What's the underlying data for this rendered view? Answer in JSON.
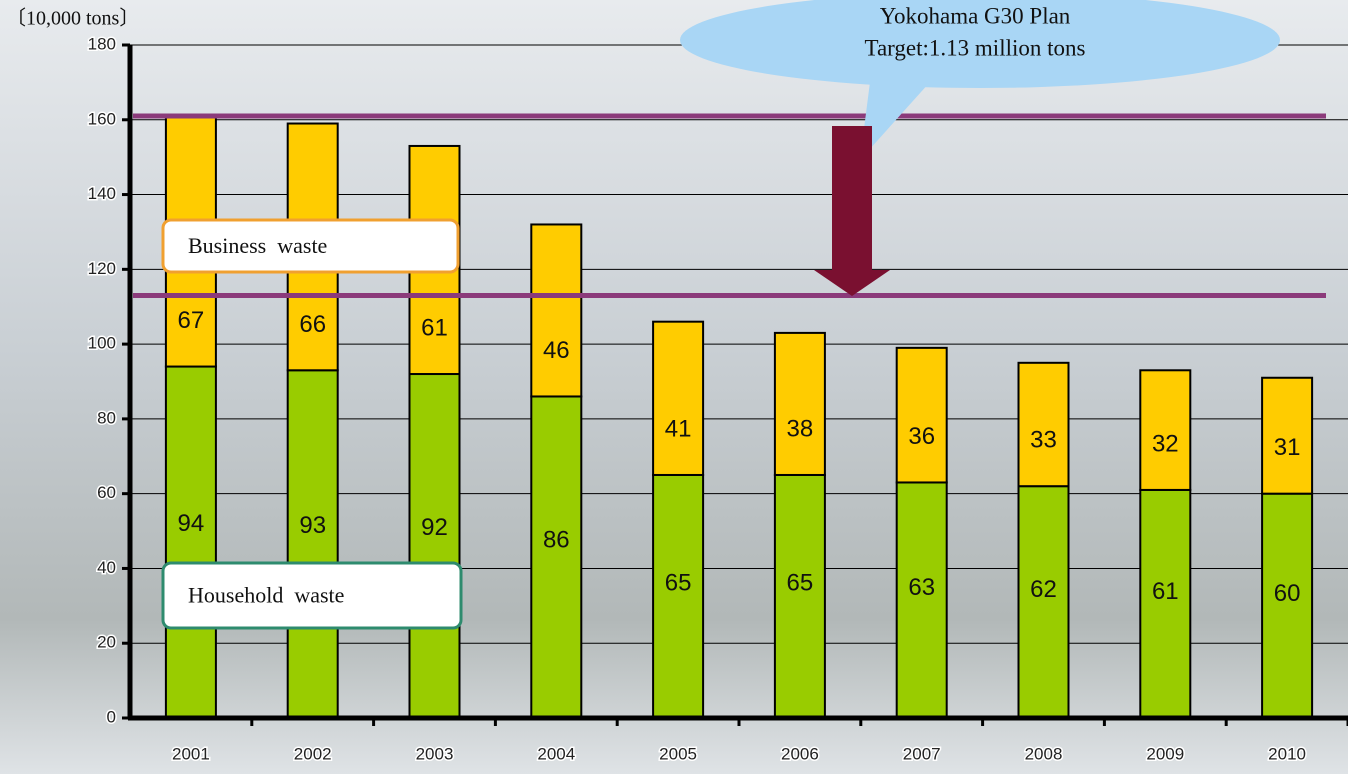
{
  "chart_data": {
    "type": "stacked_bar",
    "y_axis_label": "〔10,000 tons〕",
    "callout": [
      "Yokohama G30 Plan",
      "Target:1.13 million tons"
    ],
    "categories": [
      "2001",
      "2002",
      "2003",
      "2004",
      "2005",
      "2006",
      "2007",
      "2008",
      "2009",
      "2010"
    ],
    "series": [
      {
        "name": "Household  waste",
        "color": "#99cc00",
        "border": "#2e8b6e",
        "values": [
          94,
          93,
          92,
          86,
          65,
          65,
          63,
          62,
          61,
          60
        ]
      },
      {
        "name": "Business  waste",
        "color": "#ffcc00",
        "border": "#f0a030",
        "values": [
          67,
          66,
          61,
          46,
          41,
          38,
          36,
          33,
          32,
          31
        ]
      }
    ],
    "reference_lines": [
      161,
      113
    ],
    "reference_color": "#8b3a7a",
    "ylim": [
      0,
      180
    ],
    "yticks": [
      0,
      20,
      40,
      60,
      80,
      100,
      120,
      140,
      160,
      180
    ],
    "grid": true
  }
}
